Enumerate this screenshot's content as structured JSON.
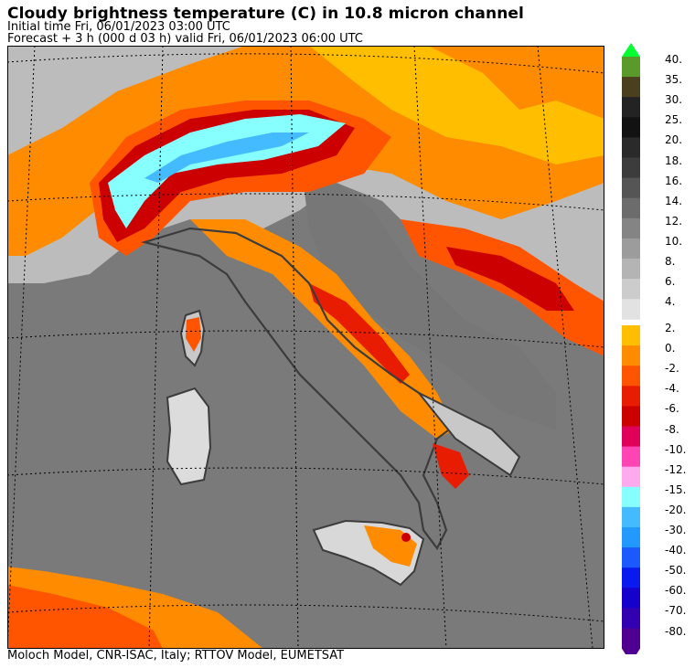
{
  "header": {
    "title": "Cloudy brightness temperature (C) in   10.8 micron channel",
    "initial_time": "Initial time  Fri, 06/01/2023  03:00 UTC",
    "forecast": "Forecast  +   3 h  (000 d 03 h)  valid Fri, 06/01/2023 06:00 UTC"
  },
  "footer": {
    "credit": "Moloch Model, CNR-ISAC, Italy; RTTOV Model, EUMETSAT"
  },
  "colorbar": {
    "upper_labels": [
      "40.",
      "35.",
      "30.",
      "25.",
      "20.",
      "18.",
      "16.",
      "14.",
      "12.",
      "10.",
      "8.",
      "6.",
      "4."
    ],
    "upper_colors": [
      "#5a9a2a",
      "#4a4020",
      "#232323",
      "#121212",
      "#2a2a2a",
      "#3c3c3c",
      "#555555",
      "#6c6c6c",
      "#848484",
      "#9c9c9c",
      "#b4b4b4",
      "#cccccc",
      "#e2e2e2"
    ],
    "lower_labels": [
      "2.",
      "0.",
      "-2.",
      "-4.",
      "-6.",
      "-8.",
      "-10.",
      "-12.",
      "-15.",
      "-20.",
      "-30.",
      "-40.",
      "-50.",
      "-60.",
      "-70.",
      "-80."
    ],
    "lower_colors": [
      "#ffbf00",
      "#ff8c00",
      "#ff5500",
      "#e81c00",
      "#cc0000",
      "#e0005a",
      "#ff44b4",
      "#ffaaee",
      "#88ffff",
      "#44bbff",
      "#2299ff",
      "#1a5aff",
      "#0a1aee",
      "#1500cc",
      "#3200b0",
      "#500090"
    ],
    "top_arrow_color": "#00ff33",
    "bottom_arrow_color": "#500090"
  }
}
